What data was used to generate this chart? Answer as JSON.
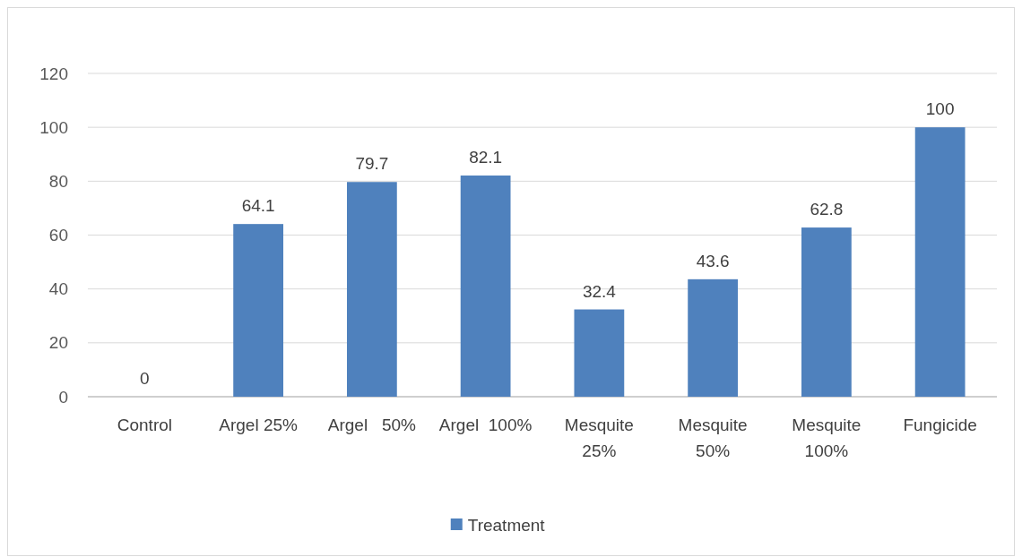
{
  "chart_data": {
    "type": "bar",
    "categories": [
      "Control",
      "Argel 25%",
      "Argel   50%",
      "Argel  100%",
      "Mesquite 25%",
      "Mesquite 50%",
      "Mesquite 100%",
      "Fungicide"
    ],
    "series": [
      {
        "name": "Treatment",
        "color": "#4f81bd",
        "values": [
          0,
          64.1,
          79.7,
          82.1,
          32.4,
          43.6,
          62.8,
          100
        ]
      }
    ],
    "ylim": [
      0,
      120
    ],
    "yticks": [
      0,
      20,
      40,
      60,
      80,
      100,
      120
    ],
    "grid": "y",
    "legend": "bottom",
    "data_labels": true
  }
}
